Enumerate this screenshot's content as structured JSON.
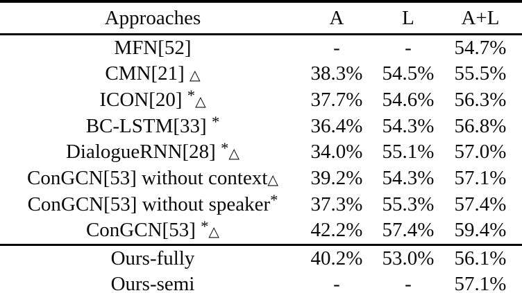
{
  "header": {
    "approaches": "Approaches",
    "a": "A",
    "l": "L",
    "al": "A+L"
  },
  "symbols": {
    "star": "*",
    "triangle": "△"
  },
  "main_rows": [
    {
      "name": "MFN[52]",
      "star": "",
      "tri": "",
      "a": "-",
      "l": "-",
      "al": "54.7%"
    },
    {
      "name": "CMN[21] ",
      "star": "",
      "tri": "△",
      "a": "38.3%",
      "l": "54.5%",
      "al": "55.5%"
    },
    {
      "name": "ICON[20] ",
      "star": "*",
      "tri": "△",
      "a": "37.7%",
      "l": "54.6%",
      "al": "56.3%"
    },
    {
      "name": "BC-LSTM[33] ",
      "star": "*",
      "tri": "",
      "a": "36.4%",
      "l": "54.3%",
      "al": "56.8%"
    },
    {
      "name": "DialogueRNN[28] ",
      "star": "*",
      "tri": "△",
      "a": "34.0%",
      "l": "55.1%",
      "al": "57.0%"
    },
    {
      "name": "ConGCN[53] without context",
      "star": "",
      "tri": "△",
      "a": "39.2%",
      "l": "54.3%",
      "al": "57.1%"
    },
    {
      "name": "ConGCN[53] without speaker",
      "star": "*",
      "tri": "",
      "a": "37.3%",
      "l": "55.3%",
      "al": "57.4%"
    },
    {
      "name": "ConGCN[53] ",
      "star": "*",
      "tri": "△",
      "a": "42.2%",
      "l": "57.4%",
      "al": "59.4%"
    }
  ],
  "footer_rows": [
    {
      "name": "Ours-fully",
      "star": "",
      "tri": "",
      "a": "40.2%",
      "l": "53.0%",
      "al": "56.1%"
    },
    {
      "name": "Ours-semi",
      "star": "",
      "tri": "",
      "a": "-",
      "l": "-",
      "al": "57.1%"
    }
  ],
  "colors": {
    "text": "#0b0b0b",
    "rule": "#000000",
    "background": "#ffffff"
  }
}
